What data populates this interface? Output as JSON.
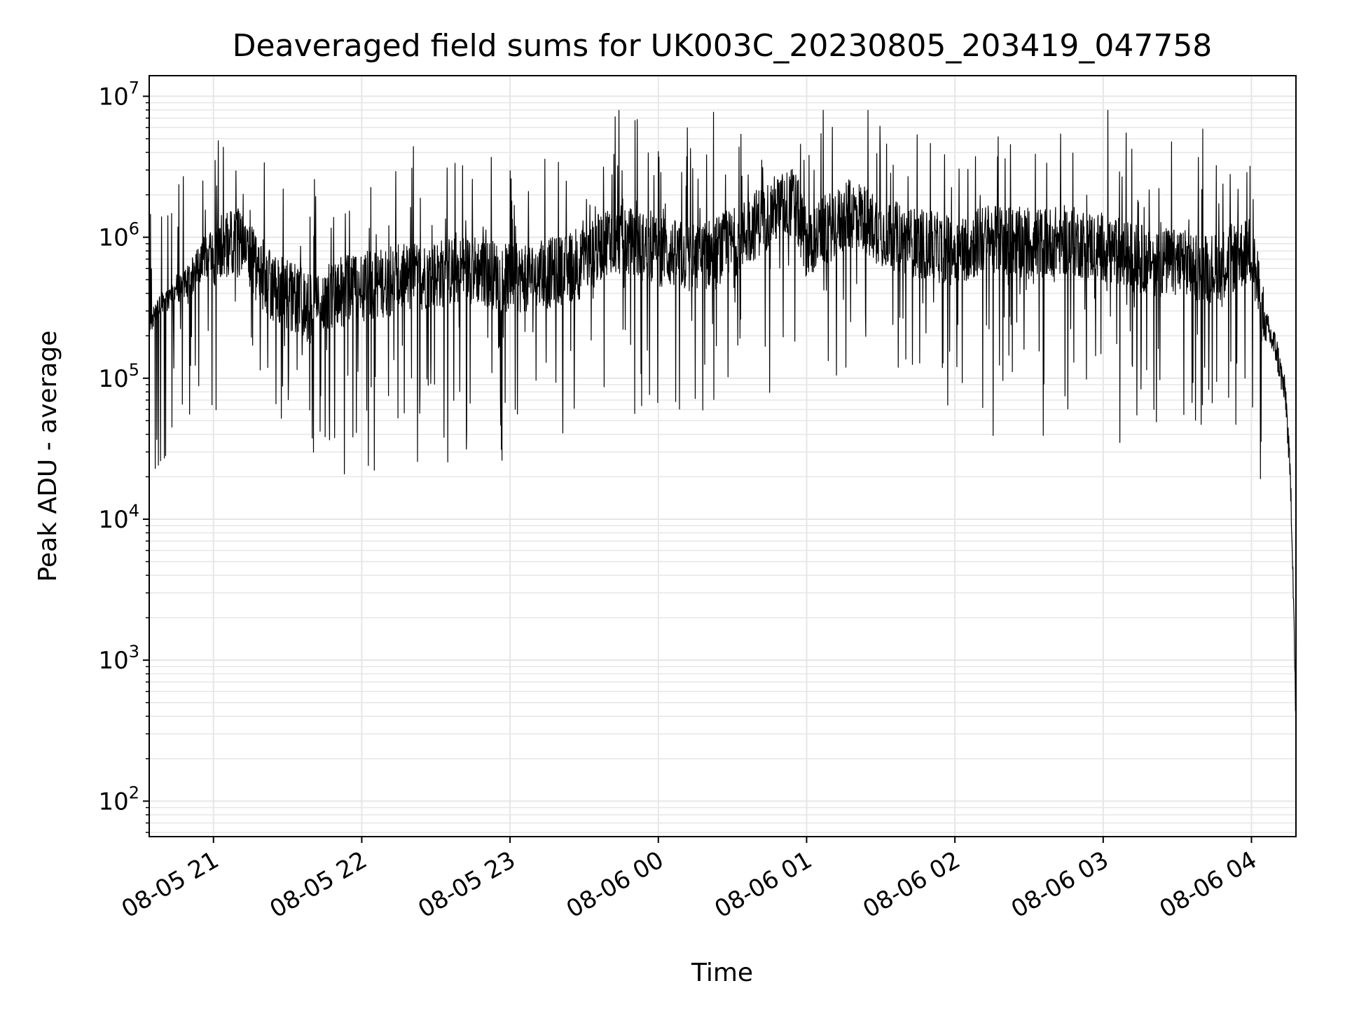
{
  "chart_data": {
    "type": "line",
    "title": "Deaveraged field sums for UK003C_20230805_203419_047758",
    "xlabel": "Time",
    "ylabel": "Peak ADU - average",
    "y_scale": "log",
    "grid": true,
    "legend": "none",
    "line_color": "#000000",
    "grid_color": "#e6e6e6",
    "x_tick_labels": [
      "08-05 21",
      "08-05 22",
      "08-05 23",
      "08-06 00",
      "08-06 01",
      "08-06 02",
      "08-06 03",
      "08-06 04"
    ],
    "x_tick_values": [
      "2023-08-05 21:00",
      "2023-08-05 22:00",
      "2023-08-05 23:00",
      "2023-08-06 00:00",
      "2023-08-06 01:00",
      "2023-08-06 02:00",
      "2023-08-06 03:00",
      "2023-08-06 04:00"
    ],
    "y_tick_bases": [
      "10",
      "10",
      "10",
      "10",
      "10",
      "10"
    ],
    "y_tick_exponents": [
      "2",
      "3",
      "4",
      "5",
      "6",
      "7"
    ],
    "y_tick_values": [
      100,
      1000,
      10000,
      100000,
      1000000,
      10000000
    ],
    "xlim": [
      "2023-08-05 20:34",
      "2023-08-06 04:18"
    ],
    "ylim": [
      56,
      14000000
    ],
    "series": [
      {
        "x": [
          "2023-08-05 20:34",
          "2023-08-05 20:40",
          "2023-08-05 20:45",
          "2023-08-05 20:50",
          "2023-08-05 20:55",
          "2023-08-05 21:00",
          "2023-08-05 21:10",
          "2023-08-05 21:15",
          "2023-08-05 21:20",
          "2023-08-05 21:30",
          "2023-08-05 21:40",
          "2023-08-05 21:45",
          "2023-08-05 21:50",
          "2023-08-05 22:00",
          "2023-08-05 22:15",
          "2023-08-05 22:30",
          "2023-08-05 22:45",
          "2023-08-05 23:00",
          "2023-08-05 23:15",
          "2023-08-05 23:30",
          "2023-08-05 23:40",
          "2023-08-05 23:50",
          "2023-08-06 00:00",
          "2023-08-06 00:15",
          "2023-08-06 00:30",
          "2023-08-06 00:45",
          "2023-08-06 00:55",
          "2023-08-06 01:00",
          "2023-08-06 01:10",
          "2023-08-06 01:20",
          "2023-08-06 01:30",
          "2023-08-06 01:45",
          "2023-08-06 02:00",
          "2023-08-06 02:15",
          "2023-08-06 02:30",
          "2023-08-06 02:45",
          "2023-08-06 03:00",
          "2023-08-06 03:15",
          "2023-08-06 03:30",
          "2023-08-06 03:45",
          "2023-08-06 03:55",
          "2023-08-06 04:00",
          "2023-08-06 04:05",
          "2023-08-06 04:10",
          "2023-08-06 04:14",
          "2023-08-06 04:16",
          "2023-08-06 04:17",
          "2023-08-06 04:18"
        ],
        "values": [
          250000,
          350000,
          400000,
          450000,
          700000,
          800000,
          900000,
          700000,
          500000,
          400000,
          300000,
          350000,
          400000,
          450000,
          500000,
          550000,
          600000,
          500000,
          550000,
          650000,
          1000000,
          900000,
          800000,
          700000,
          900000,
          1500000,
          1800000,
          900000,
          1200000,
          1500000,
          1100000,
          900000,
          800000,
          1000000,
          900000,
          950000,
          850000,
          700000,
          650000,
          600000,
          750000,
          800000,
          250000,
          160000,
          70000,
          15000,
          3000,
          300
        ]
      }
    ]
  }
}
